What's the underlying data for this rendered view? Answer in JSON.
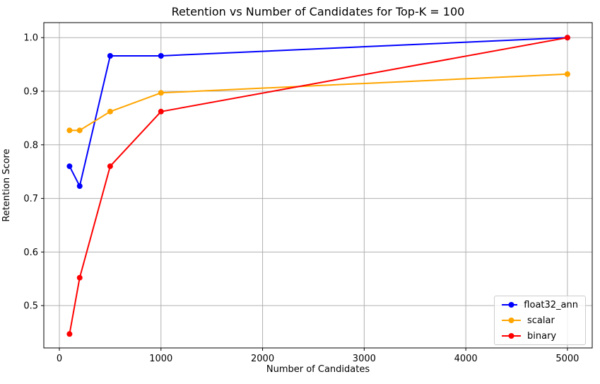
{
  "chart_data": {
    "type": "line",
    "title": "Retention vs Number of Candidates for Top-K = 100",
    "xlabel": "Number of Candidates",
    "ylabel": "Retention Score",
    "x": [
      100,
      200,
      500,
      1000,
      5000
    ],
    "series": [
      {
        "name": "float32_ann",
        "color": "#0000ff",
        "values": [
          0.76,
          0.723,
          0.966,
          0.966,
          1.0
        ]
      },
      {
        "name": "scalar",
        "color": "#ffa500",
        "values": [
          0.827,
          0.827,
          0.862,
          0.897,
          0.932
        ]
      },
      {
        "name": "binary",
        "color": "#ff0000",
        "values": [
          0.447,
          0.552,
          0.76,
          0.862,
          1.0
        ]
      }
    ],
    "xticks": {
      "values": [
        0,
        1000,
        2000,
        3000,
        4000,
        5000
      ],
      "labels": [
        "0",
        "1000",
        "2000",
        "3000",
        "4000",
        "5000"
      ]
    },
    "yticks": {
      "values": [
        0.5,
        0.6,
        0.7,
        0.8,
        0.9,
        1.0
      ],
      "labels": [
        "0.5",
        "0.6",
        "0.7",
        "0.8",
        "0.9",
        "1.0"
      ]
    },
    "xlim": [
      -153,
      5244
    ],
    "ylim": [
      0.421,
      1.028
    ],
    "grid": true,
    "marker": "o",
    "legend": {
      "position": "lower right",
      "entries": [
        "float32_ann",
        "scalar",
        "binary"
      ]
    }
  },
  "colors": {
    "background": "#ffffff",
    "grid": "#b0b0b0",
    "spine": "#000000",
    "tick": "#000000",
    "text": "#000000",
    "legend_border": "#cccccc"
  }
}
